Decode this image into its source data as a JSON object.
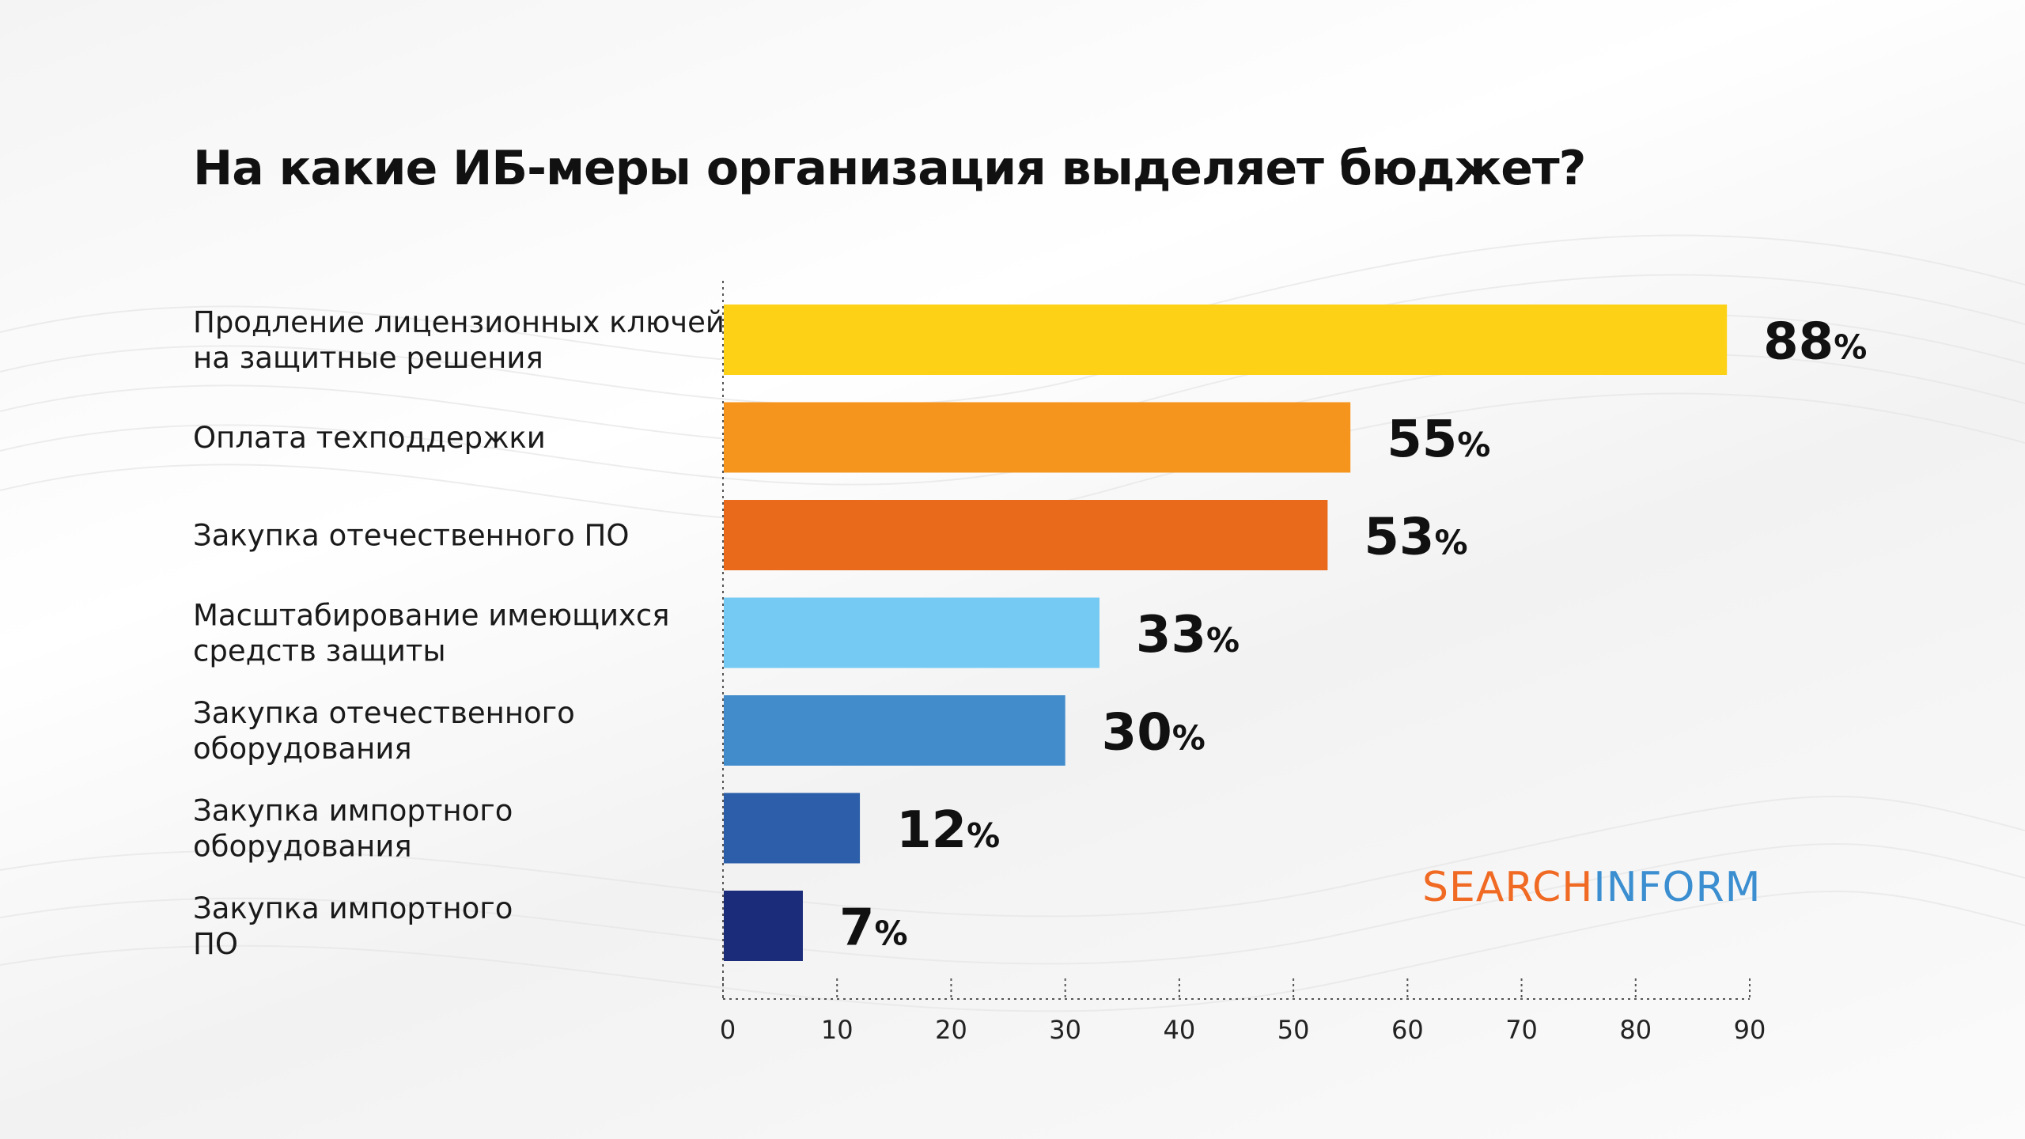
{
  "title": "На какие ИБ-меры организация выделяет бюджет?",
  "brand": {
    "part1": "SEARCH",
    "part2": "INFORM",
    "color1": "#F06A23",
    "color2": "#3B8ED0"
  },
  "chart_data": {
    "type": "bar",
    "orientation": "horizontal",
    "categories": [
      [
        "Продление лицензионных ключей",
        "на защитные решения"
      ],
      [
        "Оплата техподдержки"
      ],
      [
        "Закупка отечественного ПО"
      ],
      [
        "Масштабирование имеющихся",
        "средств защиты"
      ],
      [
        "Закупка отечественного",
        "оборудования"
      ],
      [
        "Закупка импортного",
        "оборудования"
      ],
      [
        "Закупка импортного",
        "ПО"
      ]
    ],
    "values": [
      88,
      55,
      53,
      33,
      30,
      12,
      7
    ],
    "value_suffix": "%",
    "colors": [
      "#FDD116",
      "#F6951E",
      "#EA6A1C",
      "#74CAF2",
      "#438CCB",
      "#2C5EA9",
      "#1A2C7A"
    ],
    "xlim": [
      0,
      90
    ],
    "xticks": [
      0,
      10,
      20,
      30,
      40,
      50,
      60,
      70,
      80,
      90
    ],
    "grid": false
  }
}
